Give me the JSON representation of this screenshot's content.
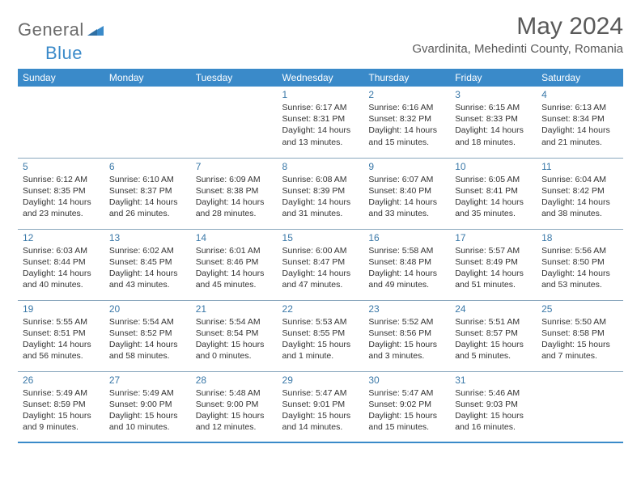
{
  "logo": {
    "part1": "General",
    "part2": "Blue"
  },
  "title": "May 2024",
  "location": "Gvardinita, Mehedinti County, Romania",
  "colors": {
    "header_bg": "#3a8ac9",
    "header_text": "#ffffff",
    "day_num": "#3a78a8",
    "border": "#8aa7bd",
    "title_color": "#595959",
    "body_text": "#333333",
    "logo_gray": "#6b6b6b",
    "logo_blue": "#3a8ac9",
    "page_bg": "#ffffff"
  },
  "weekdays": [
    "Sunday",
    "Monday",
    "Tuesday",
    "Wednesday",
    "Thursday",
    "Friday",
    "Saturday"
  ],
  "weeks": [
    [
      null,
      null,
      null,
      {
        "n": "1",
        "sr": "6:17 AM",
        "ss": "8:31 PM",
        "dl": "14 hours and 13 minutes."
      },
      {
        "n": "2",
        "sr": "6:16 AM",
        "ss": "8:32 PM",
        "dl": "14 hours and 15 minutes."
      },
      {
        "n": "3",
        "sr": "6:15 AM",
        "ss": "8:33 PM",
        "dl": "14 hours and 18 minutes."
      },
      {
        "n": "4",
        "sr": "6:13 AM",
        "ss": "8:34 PM",
        "dl": "14 hours and 21 minutes."
      }
    ],
    [
      {
        "n": "5",
        "sr": "6:12 AM",
        "ss": "8:35 PM",
        "dl": "14 hours and 23 minutes."
      },
      {
        "n": "6",
        "sr": "6:10 AM",
        "ss": "8:37 PM",
        "dl": "14 hours and 26 minutes."
      },
      {
        "n": "7",
        "sr": "6:09 AM",
        "ss": "8:38 PM",
        "dl": "14 hours and 28 minutes."
      },
      {
        "n": "8",
        "sr": "6:08 AM",
        "ss": "8:39 PM",
        "dl": "14 hours and 31 minutes."
      },
      {
        "n": "9",
        "sr": "6:07 AM",
        "ss": "8:40 PM",
        "dl": "14 hours and 33 minutes."
      },
      {
        "n": "10",
        "sr": "6:05 AM",
        "ss": "8:41 PM",
        "dl": "14 hours and 35 minutes."
      },
      {
        "n": "11",
        "sr": "6:04 AM",
        "ss": "8:42 PM",
        "dl": "14 hours and 38 minutes."
      }
    ],
    [
      {
        "n": "12",
        "sr": "6:03 AM",
        "ss": "8:44 PM",
        "dl": "14 hours and 40 minutes."
      },
      {
        "n": "13",
        "sr": "6:02 AM",
        "ss": "8:45 PM",
        "dl": "14 hours and 43 minutes."
      },
      {
        "n": "14",
        "sr": "6:01 AM",
        "ss": "8:46 PM",
        "dl": "14 hours and 45 minutes."
      },
      {
        "n": "15",
        "sr": "6:00 AM",
        "ss": "8:47 PM",
        "dl": "14 hours and 47 minutes."
      },
      {
        "n": "16",
        "sr": "5:58 AM",
        "ss": "8:48 PM",
        "dl": "14 hours and 49 minutes."
      },
      {
        "n": "17",
        "sr": "5:57 AM",
        "ss": "8:49 PM",
        "dl": "14 hours and 51 minutes."
      },
      {
        "n": "18",
        "sr": "5:56 AM",
        "ss": "8:50 PM",
        "dl": "14 hours and 53 minutes."
      }
    ],
    [
      {
        "n": "19",
        "sr": "5:55 AM",
        "ss": "8:51 PM",
        "dl": "14 hours and 56 minutes."
      },
      {
        "n": "20",
        "sr": "5:54 AM",
        "ss": "8:52 PM",
        "dl": "14 hours and 58 minutes."
      },
      {
        "n": "21",
        "sr": "5:54 AM",
        "ss": "8:54 PM",
        "dl": "15 hours and 0 minutes."
      },
      {
        "n": "22",
        "sr": "5:53 AM",
        "ss": "8:55 PM",
        "dl": "15 hours and 1 minute."
      },
      {
        "n": "23",
        "sr": "5:52 AM",
        "ss": "8:56 PM",
        "dl": "15 hours and 3 minutes."
      },
      {
        "n": "24",
        "sr": "5:51 AM",
        "ss": "8:57 PM",
        "dl": "15 hours and 5 minutes."
      },
      {
        "n": "25",
        "sr": "5:50 AM",
        "ss": "8:58 PM",
        "dl": "15 hours and 7 minutes."
      }
    ],
    [
      {
        "n": "26",
        "sr": "5:49 AM",
        "ss": "8:59 PM",
        "dl": "15 hours and 9 minutes."
      },
      {
        "n": "27",
        "sr": "5:49 AM",
        "ss": "9:00 PM",
        "dl": "15 hours and 10 minutes."
      },
      {
        "n": "28",
        "sr": "5:48 AM",
        "ss": "9:00 PM",
        "dl": "15 hours and 12 minutes."
      },
      {
        "n": "29",
        "sr": "5:47 AM",
        "ss": "9:01 PM",
        "dl": "15 hours and 14 minutes."
      },
      {
        "n": "30",
        "sr": "5:47 AM",
        "ss": "9:02 PM",
        "dl": "15 hours and 15 minutes."
      },
      {
        "n": "31",
        "sr": "5:46 AM",
        "ss": "9:03 PM",
        "dl": "15 hours and 16 minutes."
      },
      null
    ]
  ],
  "labels": {
    "sunrise": "Sunrise: ",
    "sunset": "Sunset: ",
    "daylight": "Daylight: "
  }
}
